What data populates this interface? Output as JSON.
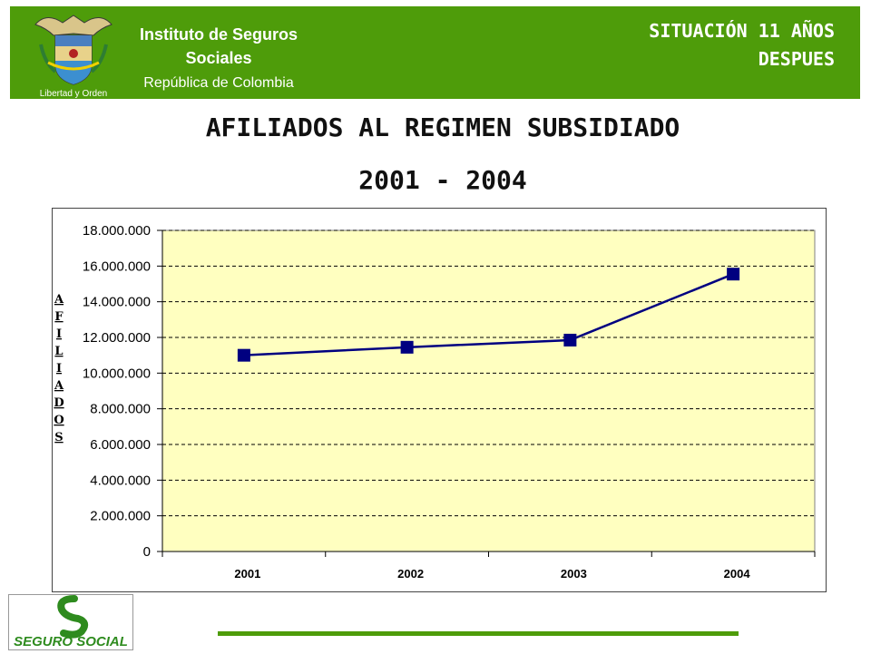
{
  "header": {
    "institute_title": "Instituto de Seguros Sociales",
    "institute_subtitle": "República de Colombia",
    "crest_motto": "Libertad y Orden",
    "situacion_line1": "SITUACIÓN 11 AÑOS",
    "situacion_line2": "DESPUES",
    "band_color": "#4e9c0a"
  },
  "page": {
    "title": "AFILIADOS AL REGIMEN SUBSIDIADO",
    "subtitle": "2001 - 2004"
  },
  "chart_data": {
    "type": "line",
    "title": "",
    "xlabel": "",
    "ylabel": "AFILIADOS",
    "categories": [
      "2001",
      "2002",
      "2003",
      "2004"
    ],
    "series": [
      {
        "name": "",
        "values": [
          11000000,
          11450000,
          11850000,
          15550000
        ],
        "color": "#000080"
      }
    ],
    "ylim": [
      0,
      18000000
    ],
    "yticks": [
      "0",
      "2.000.000",
      "4.000.000",
      "6.000.000",
      "8.000.000",
      "10.000.000",
      "12.000.000",
      "14.000.000",
      "16.000.000",
      "18.000.000"
    ],
    "plot_background": "#ffffc0",
    "grid": true,
    "legend": "none"
  },
  "footer": {
    "logo_text": "SEGURO SOCIAL"
  }
}
